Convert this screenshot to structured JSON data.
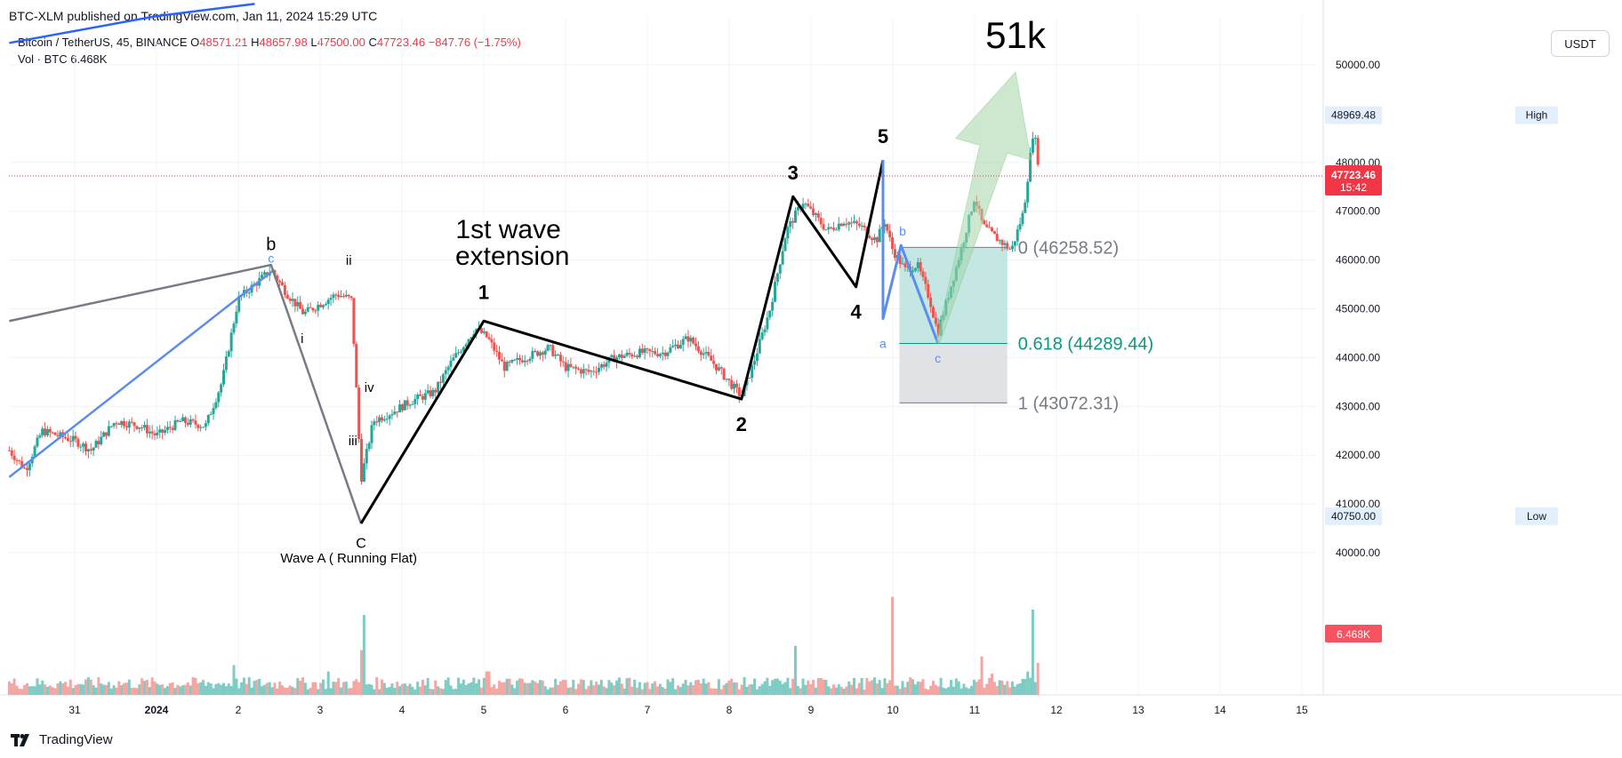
{
  "header": {
    "caption": "BTC-XLM published on TradingView.com, Jan 11, 2024 15:29 UTC",
    "symbol": "Bitcoin / TetherUS, 45, BINANCE",
    "ohlc": {
      "o_label": "O",
      "o": "48571.21",
      "h_label": "H",
      "h": "48657.98",
      "l_label": "L",
      "l": "47500.00",
      "c_label": "C",
      "c": "47723.46",
      "change": "−847.76 (−1.75%)"
    },
    "volume_label": "Vol · BTC",
    "volume_value": "6.468K",
    "currency": "USDT"
  },
  "footer": {
    "brand": "TradingView"
  },
  "colors": {
    "up": "#26a69a",
    "down": "#ef5350",
    "vol_up": "#7fccc4",
    "vol_down": "#f4a6a3",
    "wave": "#000000",
    "blue": "#5a8df0",
    "grey_line": "#787b86",
    "fib_green": "#b2dfdb",
    "fib_grey": "#dcdde0",
    "fib_text": "#787b86",
    "fib_618": "#089981",
    "arrow": "#a5d6a7",
    "last_price": "#f23645"
  },
  "chart_data": {
    "type": "candlestick",
    "symbol": "BTC/USDT",
    "interval": "45",
    "y_axis": {
      "range": [
        39300,
        51200
      ],
      "ticks": [
        40000,
        41000,
        42000,
        43000,
        44000,
        45000,
        46000,
        47000,
        48000,
        50000
      ],
      "tick_labels": [
        "40000.00",
        "41000.00",
        "42000.00",
        "43000.00",
        "44000.00",
        "45000.00",
        "46000.00",
        "47000.00",
        "48000.00",
        "50000.00"
      ]
    },
    "x_axis": {
      "range": [
        30.2,
        15.6
      ],
      "ticks": [
        {
          "pos": 31,
          "label": "31",
          "bold": false
        },
        {
          "pos": 32,
          "label": "2024",
          "bold": true
        },
        {
          "pos": 33,
          "label": "2",
          "bold": false
        },
        {
          "pos": 34,
          "label": "3",
          "bold": false
        },
        {
          "pos": 35,
          "label": "4",
          "bold": false
        },
        {
          "pos": 36,
          "label": "5",
          "bold": false
        },
        {
          "pos": 37,
          "label": "6",
          "bold": false
        },
        {
          "pos": 38,
          "label": "7",
          "bold": false
        },
        {
          "pos": 39,
          "label": "8",
          "bold": false
        },
        {
          "pos": 40,
          "label": "9",
          "bold": false
        },
        {
          "pos": 41,
          "label": "10",
          "bold": false
        },
        {
          "pos": 42,
          "label": "11",
          "bold": false
        },
        {
          "pos": 43,
          "label": "12",
          "bold": false
        },
        {
          "pos": 44,
          "label": "13",
          "bold": false
        },
        {
          "pos": 45,
          "label": "14",
          "bold": false
        },
        {
          "pos": 46,
          "label": "15",
          "bold": false
        }
      ]
    },
    "x_domain": [
      30.2,
      46.6
    ],
    "price_path": [
      [
        30.2,
        42100
      ],
      [
        30.4,
        41700
      ],
      [
        30.6,
        42500
      ],
      [
        31.0,
        42300
      ],
      [
        31.2,
        42100
      ],
      [
        31.5,
        42700
      ],
      [
        31.8,
        42600
      ],
      [
        32.0,
        42400
      ],
      [
        32.3,
        42700
      ],
      [
        32.6,
        42600
      ],
      [
        32.8,
        43500
      ],
      [
        33.0,
        45200
      ],
      [
        33.2,
        45500
      ],
      [
        33.4,
        45800
      ],
      [
        33.6,
        45300
      ],
      [
        33.8,
        44900
      ],
      [
        34.0,
        45100
      ],
      [
        34.2,
        45300
      ],
      [
        34.38,
        45200
      ],
      [
        34.42,
        44100
      ],
      [
        34.5,
        41500
      ],
      [
        34.65,
        42700
      ],
      [
        34.9,
        42900
      ],
      [
        35.1,
        43100
      ],
      [
        35.4,
        43300
      ],
      [
        35.6,
        43900
      ],
      [
        35.9,
        44600
      ],
      [
        36.05,
        44400
      ],
      [
        36.25,
        43800
      ],
      [
        36.5,
        44000
      ],
      [
        36.8,
        44200
      ],
      [
        37.0,
        43800
      ],
      [
        37.3,
        43700
      ],
      [
        37.6,
        44000
      ],
      [
        37.9,
        44100
      ],
      [
        38.2,
        44100
      ],
      [
        38.5,
        44400
      ],
      [
        38.8,
        43900
      ],
      [
        39.0,
        43500
      ],
      [
        39.15,
        43200
      ],
      [
        39.3,
        43900
      ],
      [
        39.5,
        45000
      ],
      [
        39.7,
        46600
      ],
      [
        39.9,
        47200
      ],
      [
        40.05,
        46900
      ],
      [
        40.2,
        46600
      ],
      [
        40.4,
        46800
      ],
      [
        40.6,
        46700
      ],
      [
        40.8,
        46400
      ],
      [
        40.9,
        46800
      ],
      [
        41.0,
        46200
      ],
      [
        41.15,
        45800
      ],
      [
        41.3,
        45900
      ],
      [
        41.45,
        45200
      ],
      [
        41.55,
        44500
      ],
      [
        41.7,
        45400
      ],
      [
        41.85,
        46300
      ],
      [
        42.0,
        47300
      ],
      [
        42.1,
        46700
      ],
      [
        42.3,
        46400
      ],
      [
        42.45,
        46200
      ],
      [
        42.6,
        47000
      ],
      [
        42.72,
        48700
      ],
      [
        42.8,
        47723
      ]
    ],
    "volume": {
      "ylabel": "Vol · BTC",
      "last": "6.468K",
      "spikes": [
        [
          32.95,
          28
        ],
        [
          34.1,
          22
        ],
        [
          34.5,
          42
        ],
        [
          34.55,
          75
        ],
        [
          36.05,
          22
        ],
        [
          41.0,
          92
        ],
        [
          39.8,
          46
        ],
        [
          42.1,
          36
        ],
        [
          42.2,
          20
        ],
        [
          42.65,
          22
        ],
        [
          42.72,
          80
        ],
        [
          42.78,
          30
        ]
      ]
    },
    "price_labels": [
      {
        "value": 48969.48,
        "label": "48969.48",
        "tag": "High"
      },
      {
        "value": 40750.0,
        "label": "40750.00",
        "tag": "Low"
      },
      {
        "value": 47723.46,
        "label": "47723.46",
        "sub": "15:42",
        "kind": "last"
      },
      {
        "label": "6.468K",
        "kind": "volume"
      }
    ],
    "wave_lines": {
      "impulse": [
        [
          34.5,
          40600
        ],
        [
          36.0,
          44750
        ],
        [
          39.15,
          43150
        ],
        [
          39.78,
          47300
        ],
        [
          40.55,
          45450
        ],
        [
          40.88,
          48050
        ]
      ],
      "abc_grey": [
        [
          30.2,
          44750
        ],
        [
          33.4,
          45900
        ],
        [
          34.5,
          40600
        ]
      ],
      "blue_up": [
        [
          30.2,
          41550
        ],
        [
          33.4,
          45750
        ]
      ],
      "blue_top": [
        [
          30.2,
          50450
        ],
        [
          32.0,
          51000
        ],
        [
          33.2,
          51250
        ]
      ],
      "correction": [
        [
          40.88,
          48050
        ],
        [
          40.88,
          44800
        ],
        [
          41.1,
          46300
        ],
        [
          41.55,
          44300
        ]
      ],
      "corrective_mirror": [
        [
          41.55,
          44300
        ],
        [
          42.72,
          48700
        ]
      ]
    },
    "labels": [
      {
        "text": "b",
        "x": 33.4,
        "y": 46200,
        "size": 20,
        "color": "#000000"
      },
      {
        "text": "c",
        "x": 33.4,
        "y": 45950,
        "size": 14,
        "color": "#5a8df0"
      },
      {
        "text": "ii",
        "x": 34.35,
        "y": 45900,
        "size": 15,
        "color": "#000000"
      },
      {
        "text": "i",
        "x": 33.78,
        "y": 44300,
        "size": 15,
        "color": "#000000"
      },
      {
        "text": "iv",
        "x": 34.6,
        "y": 43300,
        "size": 15,
        "color": "#000000"
      },
      {
        "text": "iii",
        "x": 34.4,
        "y": 42200,
        "size": 15,
        "color": "#000000"
      },
      {
        "text": "C",
        "x": 34.5,
        "y": 40100,
        "size": 16,
        "color": "#000000"
      },
      {
        "text": "1",
        "x": 36.0,
        "y": 45200,
        "size": 22,
        "color": "#000000",
        "bold": true
      },
      {
        "text": "2",
        "x": 39.15,
        "y": 42500,
        "size": 22,
        "color": "#000000",
        "bold": true
      },
      {
        "text": "3",
        "x": 39.78,
        "y": 47650,
        "size": 22,
        "color": "#000000",
        "bold": true
      },
      {
        "text": "4",
        "x": 40.55,
        "y": 44800,
        "size": 22,
        "color": "#000000",
        "bold": true
      },
      {
        "text": "5",
        "x": 40.88,
        "y": 48400,
        "size": 22,
        "color": "#000000",
        "bold": true
      },
      {
        "text": "a",
        "x": 40.88,
        "y": 44200,
        "size": 14,
        "color": "#5a8df0"
      },
      {
        "text": "b",
        "x": 41.12,
        "y": 46500,
        "size": 14,
        "color": "#5a8df0"
      },
      {
        "text": "c",
        "x": 41.55,
        "y": 43900,
        "size": 14,
        "color": "#5a8df0"
      },
      {
        "text": "51k",
        "x": 42.5,
        "y": 50350,
        "size": 42,
        "color": "#000000"
      },
      {
        "text": "1st wave",
        "x": 36.3,
        "y": 46450,
        "size": 30,
        "color": "#000000"
      },
      {
        "text": "extension",
        "x": 36.35,
        "y": 45900,
        "size": 30,
        "color": "#000000"
      },
      {
        "text": "Wave A ( Running Flat)",
        "x": 34.35,
        "y": 39800,
        "size": 15,
        "color": "#000000"
      }
    ],
    "fib": {
      "x_start": 41.08,
      "x_end": 42.4,
      "levels": [
        {
          "value": 46258.52,
          "label": "0 (46258.52)",
          "color": "#787b86"
        },
        {
          "value": 44289.44,
          "label": "0.618 (44289.44)",
          "color": "#089981"
        },
        {
          "value": 43072.31,
          "label": "1 (43072.31)",
          "color": "#787b86"
        }
      ]
    },
    "projection_arrow": {
      "from": [
        41.55,
        44300
      ],
      "to": [
        42.5,
        49850
      ]
    }
  }
}
